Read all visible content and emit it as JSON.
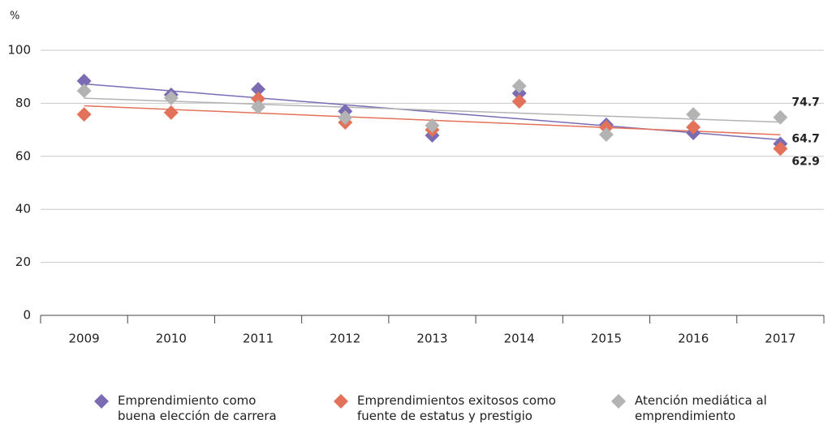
{
  "chart_data": {
    "type": "scatter",
    "ylabel": "%",
    "categories": [
      "2009",
      "2010",
      "2011",
      "2012",
      "2013",
      "2014",
      "2015",
      "2016",
      "2017"
    ],
    "series": [
      {
        "name": "Emprendimiento como buena elección de carrera",
        "color": "#7b6bb3",
        "values": [
          88.4,
          83.2,
          85.3,
          77,
          67.9,
          83.8,
          71.9,
          68.8,
          64.7
        ],
        "label_last": true,
        "label_position": "right"
      },
      {
        "name": "Emprendimientos exitosos como fuente de estatus y prestigio",
        "color": "#e2735a",
        "values": [
          75.8,
          76.5,
          81.7,
          72.8,
          70,
          80.7,
          70.9,
          71,
          62.9
        ],
        "label_last": true,
        "label_position": "below"
      },
      {
        "name": "Atención mediática al emprendimiento",
        "color": "#b3b3b3",
        "values": [
          84.7,
          82,
          78.6,
          74.6,
          71.6,
          86.5,
          68.2,
          75.8,
          74.7
        ],
        "label_last": true,
        "label_position": "above"
      }
    ],
    "trendline": true,
    "ylim": [
      0,
      100
    ],
    "yticks": [
      0,
      20,
      40,
      60,
      80,
      100
    ],
    "grid": true,
    "legend": "bottom"
  }
}
